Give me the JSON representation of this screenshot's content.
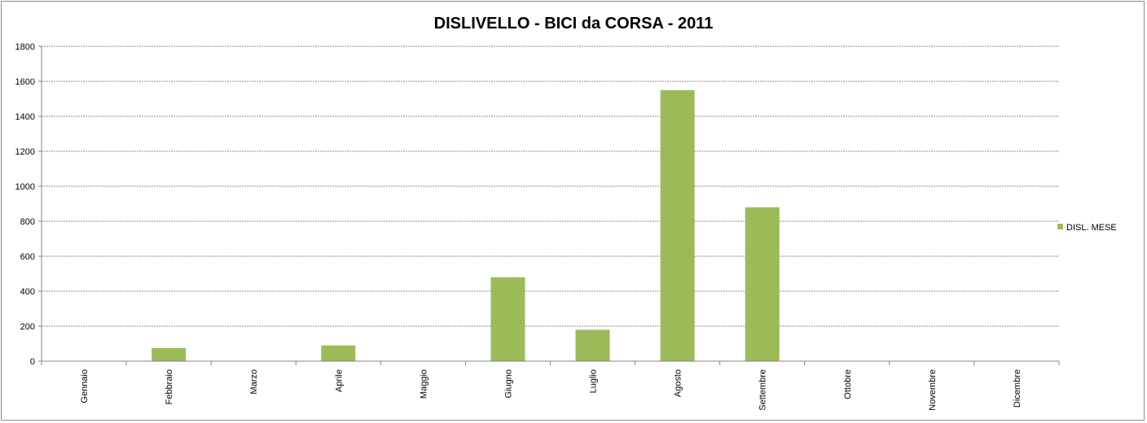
{
  "chart_data": {
    "type": "bar",
    "title": "DISLIVELLO - BICI da CORSA - 2011",
    "xlabel": "",
    "ylabel": "",
    "categories": [
      "Gennaio",
      "Febbraio",
      "Marzo",
      "Aprile",
      "Maggio",
      "Giugno",
      "Luglio",
      "Agosto",
      "Settembre",
      "Ottobre",
      "Novembre",
      "Dicembre"
    ],
    "series": [
      {
        "name": "DISL. MESE",
        "values": [
          0,
          75,
          0,
          90,
          0,
          480,
          180,
          1550,
          880,
          0,
          0,
          0
        ],
        "color": "#9bbb59"
      }
    ],
    "ylim": [
      0,
      1800
    ],
    "yticks": [
      0,
      200,
      400,
      600,
      800,
      1000,
      1200,
      1400,
      1600,
      1800
    ],
    "grid": true,
    "legend_position": "right"
  }
}
